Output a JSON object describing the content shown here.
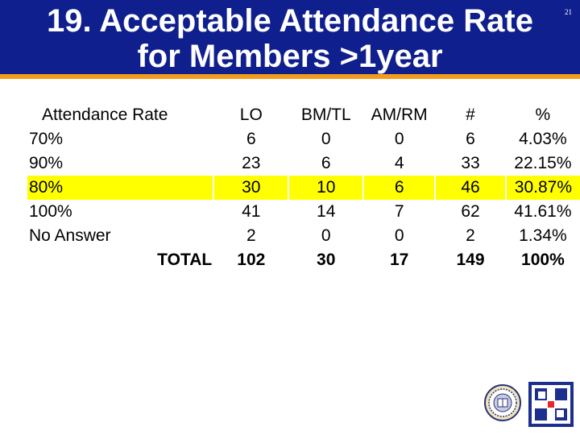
{
  "slide": {
    "title_line1": "19. Acceptable Attendance Rate",
    "title_line2": "for Members >1year",
    "number": "21"
  },
  "table": {
    "headers": [
      "Attendance Rate",
      "LO",
      "BM/TL",
      "AM/RM",
      "#",
      "%"
    ],
    "rows": [
      [
        "70%",
        "6",
        "0",
        "0",
        "6",
        "4.03%"
      ],
      [
        "90%",
        "23",
        "6",
        "4",
        "33",
        "22.15%"
      ],
      [
        "80%",
        "30",
        "10",
        "6",
        "46",
        "30.87%"
      ],
      [
        "100%",
        "41",
        "14",
        "7",
        "62",
        "41.61%"
      ],
      [
        "No Answer",
        "2",
        "0",
        "0",
        "2",
        "1.34%"
      ]
    ],
    "total": [
      "TOTAL",
      "102",
      "30",
      "17",
      "149",
      "100%"
    ],
    "highlight_color": "#ffff00"
  },
  "colors": {
    "header": "#0f1f8e",
    "accent": "#f39c1c"
  },
  "icons": {
    "seal": "university-seal-icon",
    "logo": "cross-emblem-icon"
  }
}
